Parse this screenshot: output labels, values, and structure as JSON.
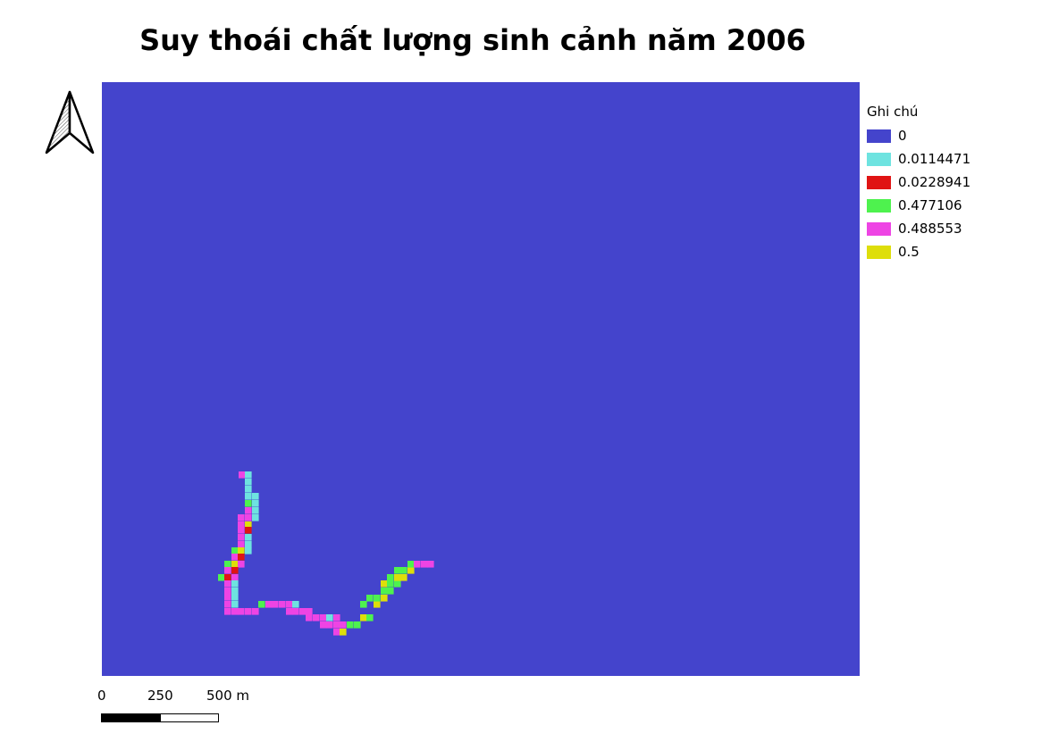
{
  "title": "Suy thoái chất lượng sinh cảnh năm 2006",
  "map": {
    "background_class": "0",
    "background_color": "#4444cc"
  },
  "legend": {
    "title": "Ghi chú",
    "items": [
      {
        "label": "0",
        "color": "#4444cc"
      },
      {
        "label": "0.0114471",
        "color": "#6ee3e0"
      },
      {
        "label": "0.0228941",
        "color": "#e01414"
      },
      {
        "label": "0.477106",
        "color": "#4ef24e"
      },
      {
        "label": "0.488553",
        "color": "#ee44e4"
      },
      {
        "label": "0.5",
        "color": "#dede0a"
      }
    ]
  },
  "north_arrow": {
    "icon": "north-arrow-icon"
  },
  "scale_bar": {
    "labels": [
      "0",
      "250",
      "500 m"
    ]
  }
}
